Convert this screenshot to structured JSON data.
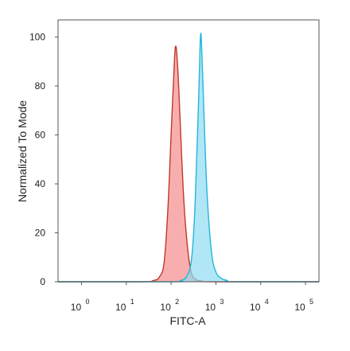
{
  "chart_data": {
    "type": "area",
    "xlabel": "FITC-A",
    "ylabel": "Normalized To Mode",
    "xscale": "log",
    "xlim": [
      0.3,
      200000
    ],
    "ylim": [
      0,
      107
    ],
    "x_ticks": [
      {
        "base": "10",
        "exp": "0",
        "value": 1
      },
      {
        "base": "10",
        "exp": "1",
        "value": 10
      },
      {
        "base": "10",
        "exp": "2",
        "value": 100
      },
      {
        "base": "10",
        "exp": "3",
        "value": 1000
      },
      {
        "base": "10",
        "exp": "4",
        "value": 10000
      },
      {
        "base": "10",
        "exp": "5",
        "value": 100000
      }
    ],
    "y_ticks": [
      0,
      20,
      40,
      60,
      80,
      100
    ],
    "grid": false,
    "series": [
      {
        "color_fill": "#f58c8c",
        "color_line": "#c0392b",
        "x": [
          0.3,
          20,
          40,
          55,
          70,
          85,
          100,
          112,
          125,
          140,
          160,
          190,
          230,
          280,
          350,
          500,
          1000,
          200000
        ],
        "y": [
          0,
          0,
          0.5,
          2,
          8,
          30,
          60,
          80,
          96,
          88,
          65,
          35,
          15,
          4,
          1,
          0.3,
          0,
          0
        ]
      },
      {
        "color_fill": "#8edcf2",
        "color_line": "#24b6d8",
        "x": [
          0.3,
          100,
          160,
          220,
          280,
          330,
          380,
          420,
          455,
          490,
          550,
          640,
          800,
          1000,
          1300,
          1800,
          2500,
          200000
        ],
        "y": [
          0,
          0,
          0.5,
          2,
          8,
          25,
          55,
          80,
          101,
          92,
          65,
          35,
          12,
          4,
          1.5,
          0.5,
          0,
          0
        ]
      }
    ]
  }
}
